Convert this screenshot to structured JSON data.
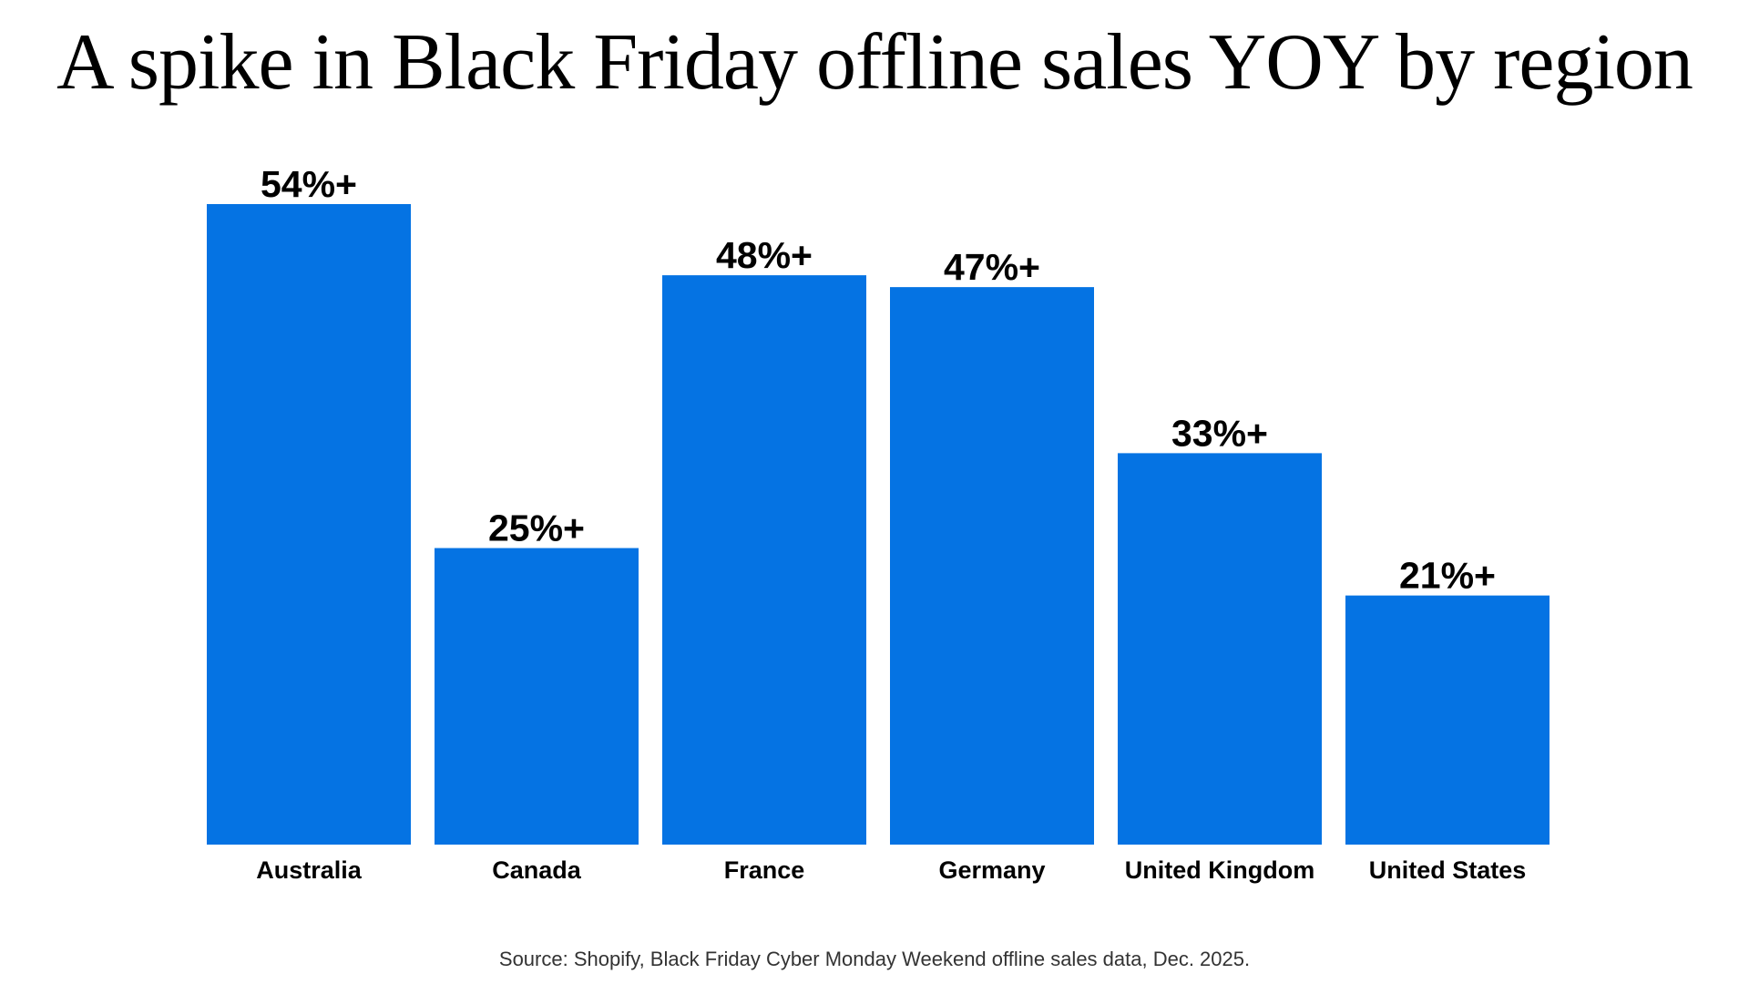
{
  "chart_data": {
    "type": "bar",
    "title": "A spike in Black Friday offline sales YOY by region",
    "categories": [
      "Australia",
      "Canada",
      "France",
      "Germany",
      "United Kingdom",
      "United States"
    ],
    "values": [
      54,
      25,
      48,
      47,
      33,
      21
    ],
    "data_labels": [
      "54%+",
      "25%+",
      "48%+",
      "47%+",
      "33%+",
      "21%+"
    ],
    "xlabel": "",
    "ylabel": "",
    "ylim": [
      0,
      54
    ],
    "grid": false,
    "bar_color": "#0573E3",
    "source": "Source: Shopify, Black Friday Cyber Monday Weekend offline sales data, Dec. 2025."
  }
}
